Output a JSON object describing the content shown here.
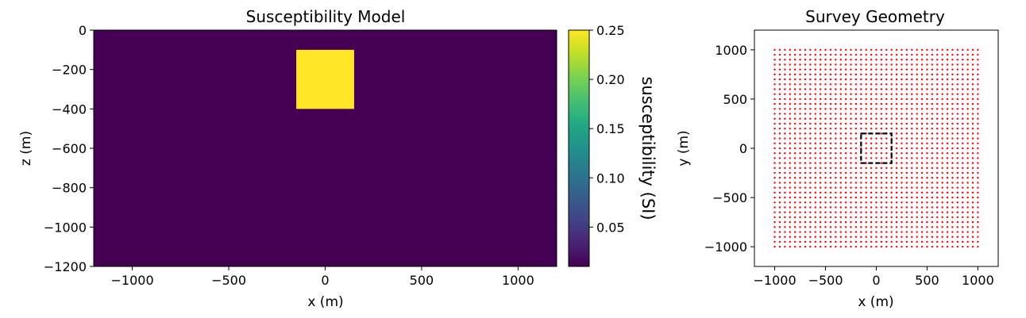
{
  "chart_data": [
    {
      "type": "heatmap",
      "title": "Susceptibility Model",
      "xlabel": "x (m)",
      "ylabel": "z (m)",
      "xlim": [
        -1200,
        1200
      ],
      "ylim": [
        -1200,
        0
      ],
      "xticks": [
        -1000,
        -500,
        0,
        500,
        1000
      ],
      "xtick_labels": [
        "−1000",
        "−500",
        "0",
        "500",
        "1000"
      ],
      "yticks": [
        0,
        -200,
        -400,
        -600,
        -800,
        -1000,
        -1200
      ],
      "ytick_labels": [
        "0",
        "−200",
        "−400",
        "−600",
        "−800",
        "−1000",
        "−1200"
      ],
      "background_value": 0.01,
      "anomaly": {
        "x": [
          -150,
          150
        ],
        "z": [
          -400,
          -100
        ],
        "value": 0.25
      },
      "colorbar": {
        "label": "susceptibility (SI)",
        "vmin": 0.01,
        "vmax": 0.25,
        "ticks": [
          0.05,
          0.1,
          0.15,
          0.2,
          0.25
        ],
        "tick_labels": [
          "0.05",
          "0.10",
          "0.15",
          "0.20",
          "0.25"
        ],
        "colormap": "viridis"
      },
      "colors": {
        "low": "#440154",
        "high": "#fde725"
      }
    },
    {
      "type": "scatter",
      "title": "Survey Geometry",
      "xlabel": "x (m)",
      "ylabel": "y (m)",
      "xlim": [
        -1200,
        1200
      ],
      "ylim": [
        -1200,
        1200
      ],
      "xticks": [
        -1000,
        -500,
        0,
        500,
        1000
      ],
      "xtick_labels": [
        "−1000",
        "−500",
        "0",
        "500",
        "1000"
      ],
      "yticks": [
        1000,
        500,
        0,
        -500,
        -1000
      ],
      "ytick_labels": [
        "1000",
        "500",
        "0",
        "−500",
        "−1000"
      ],
      "receivers": {
        "x_start": -1000,
        "x_end": 1000,
        "y_start": -1000,
        "y_end": 1000,
        "count_per_axis": 41,
        "color": "#ff0000"
      },
      "anomaly_outline": {
        "x": [
          -150,
          150
        ],
        "y": [
          -150,
          150
        ],
        "style": "dashed",
        "color": "#000000"
      }
    }
  ]
}
